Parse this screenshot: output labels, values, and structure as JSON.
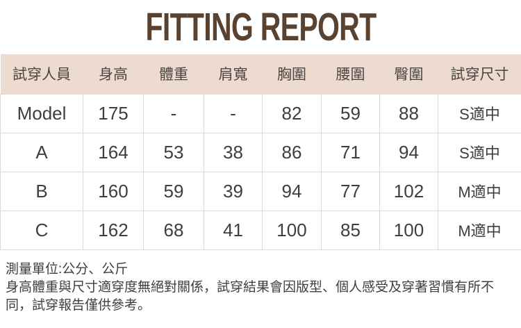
{
  "title": "FITTING REPORT",
  "table": {
    "columns": [
      "試穿人員",
      "身高",
      "體重",
      "肩寬",
      "胸圍",
      "腰圍",
      "臀圍",
      "試穿尺寸"
    ],
    "rows": [
      {
        "cells": [
          "Model",
          "175",
          "-",
          "-",
          "82",
          "59",
          "88",
          "S適中"
        ]
      },
      {
        "cells": [
          "A",
          "164",
          "53",
          "38",
          "86",
          "71",
          "94",
          "S適中"
        ]
      },
      {
        "cells": [
          "B",
          "160",
          "59",
          "39",
          "94",
          "77",
          "102",
          "M適中"
        ]
      },
      {
        "cells": [
          "C",
          "162",
          "68",
          "41",
          "100",
          "85",
          "100",
          "M適中"
        ]
      }
    ]
  },
  "notes": {
    "unit": "測量單位:公分、公斤",
    "disclaimer": "身高體重與尺寸適穿度無絕對關係，試穿結果會因版型、個人感受及穿著習慣有所不同，試穿報告僅供參考。"
  },
  "colors": {
    "title_text": "#5a4230",
    "header_background": "#ecdbce",
    "header_text": "#4b4643",
    "body_text": "#3e3e3e",
    "cell_border": "#dbdbdb"
  }
}
